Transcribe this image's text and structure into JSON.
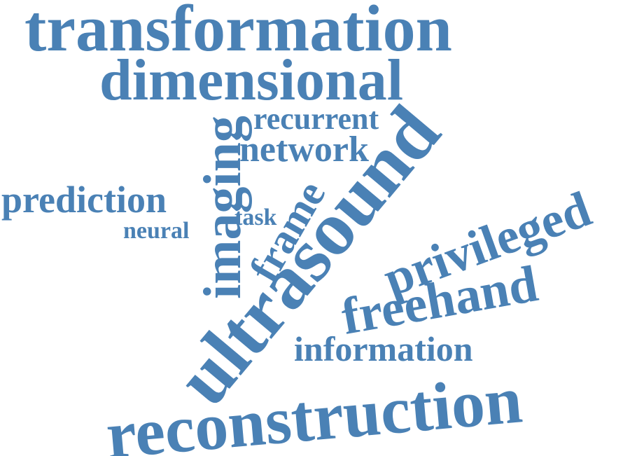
{
  "word_cloud": {
    "color": "#4a81b5",
    "background": "#ffffff",
    "words": {
      "transformation": "transformation",
      "dimensional": "dimensional",
      "recurrent": "recurrent",
      "network": "network",
      "prediction": "prediction",
      "task": "task",
      "neural": "neural",
      "imaging": "imaging",
      "frame": "frame",
      "ultrasound": "ultrasound",
      "privileged": "privileged",
      "freehand": "freehand",
      "information": "information",
      "reconstruction": "reconstruction"
    }
  }
}
